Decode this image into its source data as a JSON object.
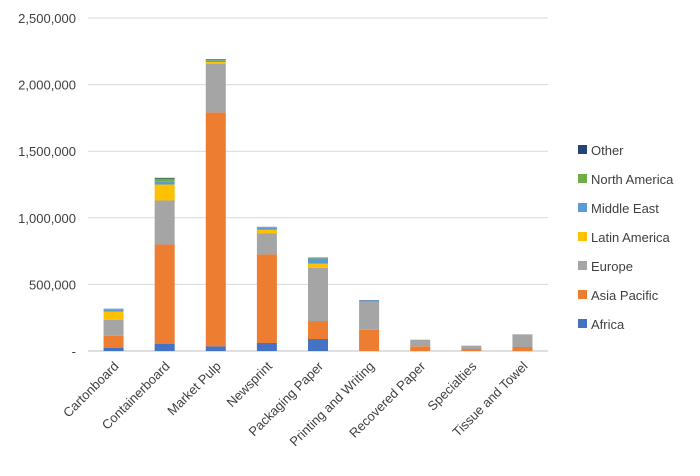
{
  "chart_data": {
    "type": "bar",
    "stacked": true,
    "categories": [
      "Cartonboard",
      "Containerboard",
      "Market Pulp",
      "Newsprint",
      "Packaging Paper",
      "Printing and Writing",
      "Recovered Paper",
      "Specialties",
      "Tissue and Towel"
    ],
    "series": [
      {
        "name": "Africa",
        "color": "#4472c4",
        "values": [
          25000,
          55000,
          35000,
          60000,
          90000,
          0,
          0,
          0,
          0
        ]
      },
      {
        "name": "Asia Pacific",
        "color": "#ed7d31",
        "values": [
          90000,
          745000,
          1755000,
          665000,
          135000,
          160000,
          35000,
          15000,
          30000
        ]
      },
      {
        "name": "Europe",
        "color": "#a5a5a5",
        "values": [
          120000,
          330000,
          365000,
          160000,
          400000,
          210000,
          50000,
          25000,
          95000
        ]
      },
      {
        "name": "Latin America",
        "color": "#ffc000",
        "values": [
          60000,
          120000,
          15000,
          25000,
          30000,
          0,
          0,
          0,
          0
        ]
      },
      {
        "name": "Middle East",
        "color": "#5b9bd5",
        "values": [
          15000,
          25000,
          10000,
          15000,
          40000,
          10000,
          0,
          0,
          0
        ]
      },
      {
        "name": "North America",
        "color": "#70ad47",
        "values": [
          5000,
          20000,
          5000,
          5000,
          5000,
          0,
          0,
          0,
          0
        ]
      },
      {
        "name": "Other",
        "color": "#264478",
        "values": [
          2000,
          5000,
          5000,
          2000,
          2000,
          2000,
          0,
          0,
          0
        ]
      }
    ],
    "ylim": [
      0,
      2500000
    ],
    "yticks": [
      0,
      500000,
      1000000,
      1500000,
      2000000,
      2500000
    ],
    "ytick_labels": [
      "-",
      "500,000",
      "1,000,000",
      "1,500,000",
      "2,000,000",
      "2,500,000"
    ],
    "grid": true,
    "legend_position": "right",
    "legend_order": [
      "Other",
      "North America",
      "Middle East",
      "Latin America",
      "Europe",
      "Asia Pacific",
      "Africa"
    ]
  }
}
